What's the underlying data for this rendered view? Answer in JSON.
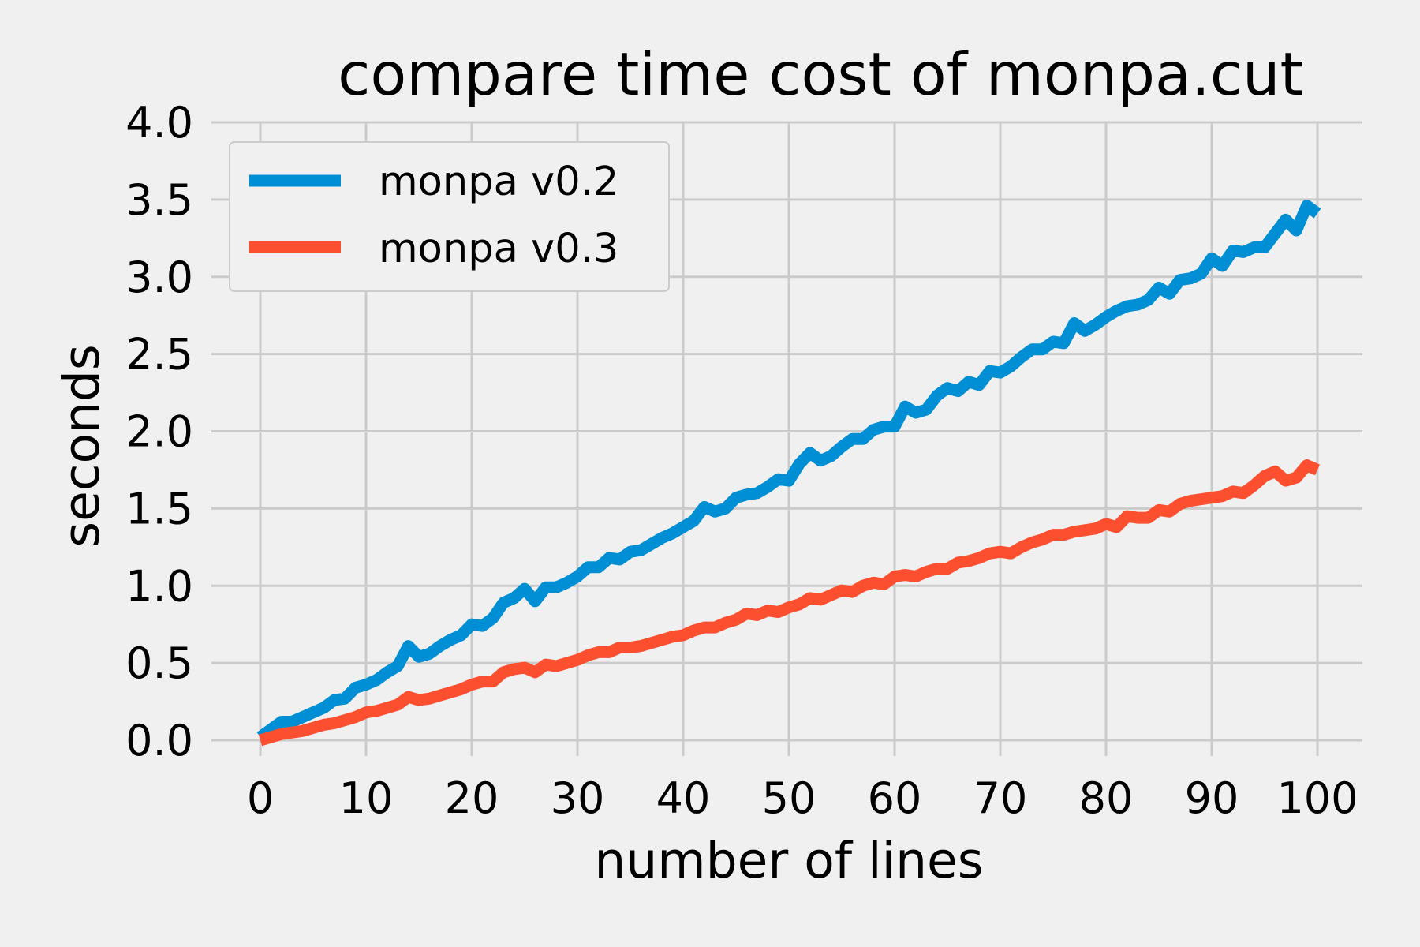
{
  "chart_data": {
    "type": "line",
    "title": "compare time cost of monpa.cut",
    "xlabel": "number of lines",
    "ylabel": "seconds",
    "xlim": [
      0,
      100
    ],
    "ylim": [
      0,
      4.0
    ],
    "xticks": [
      "0",
      "10",
      "20",
      "30",
      "40",
      "50",
      "60",
      "70",
      "80",
      "90",
      "100"
    ],
    "yticks": [
      "0.0",
      "0.5",
      "1.0",
      "1.5",
      "2.0",
      "2.5",
      "3.0",
      "3.5",
      "4.0"
    ],
    "grid": true,
    "legend_position": "top-left",
    "x": [
      0,
      2,
      3,
      4,
      5,
      6,
      7,
      8,
      9,
      10,
      11,
      12,
      13,
      14,
      15,
      16,
      17,
      18,
      19,
      20,
      21,
      22,
      23,
      24,
      25,
      26,
      27,
      28,
      29,
      30,
      31,
      32,
      33,
      34,
      35,
      36,
      37,
      38,
      39,
      40,
      41,
      42,
      43,
      44,
      45,
      46,
      47,
      48,
      49,
      50,
      51,
      52,
      53,
      54,
      55,
      56,
      57,
      58,
      59,
      60,
      61,
      62,
      63,
      64,
      65,
      66,
      67,
      68,
      69,
      70,
      71,
      72,
      73,
      74,
      75,
      76,
      77,
      78,
      79,
      80,
      81,
      82,
      83,
      84,
      85,
      86,
      87,
      88,
      89,
      90,
      91,
      92,
      93,
      94,
      95,
      96,
      97,
      98,
      99,
      100
    ],
    "series": [
      {
        "name": "monpa v0.2",
        "color": "#008fd5",
        "values": [
          0.02,
          0.12,
          0.12,
          0.15,
          0.18,
          0.21,
          0.26,
          0.27,
          0.34,
          0.36,
          0.39,
          0.44,
          0.48,
          0.61,
          0.54,
          0.56,
          0.61,
          0.65,
          0.68,
          0.75,
          0.74,
          0.79,
          0.89,
          0.92,
          0.98,
          0.9,
          0.99,
          0.99,
          1.02,
          1.06,
          1.12,
          1.12,
          1.18,
          1.17,
          1.22,
          1.23,
          1.27,
          1.31,
          1.34,
          1.38,
          1.42,
          1.51,
          1.48,
          1.5,
          1.57,
          1.59,
          1.6,
          1.64,
          1.69,
          1.68,
          1.79,
          1.86,
          1.81,
          1.84,
          1.9,
          1.95,
          1.95,
          2.01,
          2.03,
          2.03,
          2.16,
          2.12,
          2.14,
          2.23,
          2.28,
          2.26,
          2.32,
          2.3,
          2.39,
          2.38,
          2.42,
          2.48,
          2.53,
          2.53,
          2.58,
          2.57,
          2.7,
          2.65,
          2.69,
          2.74,
          2.78,
          2.81,
          2.82,
          2.85,
          2.93,
          2.89,
          2.98,
          2.99,
          3.02,
          3.12,
          3.07,
          3.17,
          3.16,
          3.19,
          3.19,
          3.28,
          3.37,
          3.3,
          3.46,
          3.41
        ]
      },
      {
        "name": "monpa v0.3",
        "color": "#fc4f30",
        "values": [
          0.0,
          0.04,
          0.05,
          0.06,
          0.08,
          0.1,
          0.11,
          0.13,
          0.15,
          0.18,
          0.19,
          0.21,
          0.23,
          0.28,
          0.26,
          0.27,
          0.29,
          0.31,
          0.33,
          0.36,
          0.38,
          0.38,
          0.44,
          0.46,
          0.47,
          0.44,
          0.49,
          0.48,
          0.5,
          0.52,
          0.55,
          0.57,
          0.57,
          0.6,
          0.6,
          0.61,
          0.63,
          0.65,
          0.67,
          0.68,
          0.71,
          0.73,
          0.73,
          0.76,
          0.78,
          0.82,
          0.81,
          0.84,
          0.83,
          0.86,
          0.88,
          0.92,
          0.91,
          0.94,
          0.97,
          0.96,
          1.0,
          1.02,
          1.01,
          1.06,
          1.07,
          1.06,
          1.09,
          1.11,
          1.11,
          1.15,
          1.16,
          1.18,
          1.21,
          1.22,
          1.21,
          1.25,
          1.28,
          1.3,
          1.33,
          1.33,
          1.35,
          1.36,
          1.37,
          1.4,
          1.38,
          1.45,
          1.44,
          1.44,
          1.49,
          1.48,
          1.53,
          1.55,
          1.56,
          1.57,
          1.58,
          1.61,
          1.6,
          1.65,
          1.71,
          1.74,
          1.68,
          1.7,
          1.78,
          1.75
        ]
      }
    ]
  }
}
